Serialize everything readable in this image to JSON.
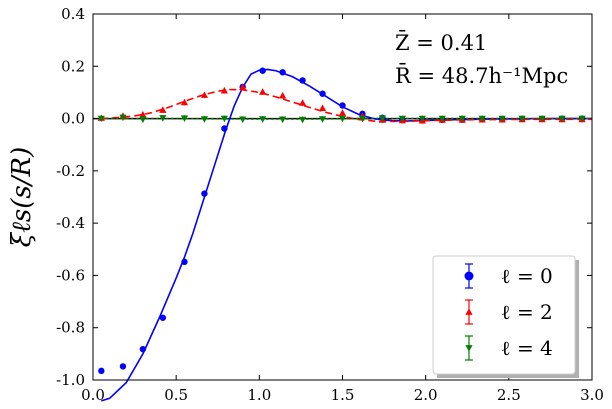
{
  "chart_data": {
    "type": "scatter",
    "ylabel": "ξℓs(s/R)",
    "xlim": [
      0.0,
      3.0
    ],
    "ylim": [
      -1.0,
      0.4
    ],
    "xticks": [
      "0.0",
      "0.5",
      "1.0",
      "1.5",
      "2.0",
      "2.5",
      "3.0"
    ],
    "yticks": [
      "0.4",
      "0.2",
      "0.0",
      "-0.2",
      "-0.4",
      "-0.6",
      "-0.8",
      "-1.0"
    ],
    "annotations": [
      "Z̄ = 0.41",
      "R̄ = 48.7h⁻¹Mpc"
    ],
    "legend_position": "lower-right",
    "series": [
      {
        "name": "ℓ = 0",
        "color": "#0000ff",
        "marker": "circle",
        "points": [
          [
            0.05,
            -0.965
          ],
          [
            0.18,
            -0.948
          ],
          [
            0.3,
            -0.882
          ],
          [
            0.42,
            -0.762
          ],
          [
            0.55,
            -0.548
          ],
          [
            0.67,
            -0.287
          ],
          [
            0.79,
            -0.038
          ],
          [
            0.9,
            0.121
          ],
          [
            1.02,
            0.183
          ],
          [
            1.14,
            0.177
          ],
          [
            1.26,
            0.146
          ],
          [
            1.38,
            0.095
          ],
          [
            1.5,
            0.05
          ],
          [
            1.62,
            0.018
          ],
          [
            1.74,
            0.003
          ],
          [
            1.86,
            -0.004
          ],
          [
            1.98,
            -0.006
          ],
          [
            2.1,
            -0.005
          ],
          [
            2.22,
            -0.004
          ],
          [
            2.34,
            -0.003
          ],
          [
            2.46,
            -0.002
          ],
          [
            2.58,
            -0.001
          ],
          [
            2.7,
            -0.001
          ],
          [
            2.82,
            0.0
          ],
          [
            2.94,
            0.0
          ]
        ],
        "fit": [
          [
            0.05,
            -1.08
          ],
          [
            0.1,
            -1.07
          ],
          [
            0.2,
            -1.01
          ],
          [
            0.3,
            -0.9
          ],
          [
            0.4,
            -0.76
          ],
          [
            0.5,
            -0.61
          ],
          [
            0.55,
            -0.53
          ],
          [
            0.6,
            -0.44
          ],
          [
            0.7,
            -0.24
          ],
          [
            0.8,
            -0.04
          ],
          [
            0.85,
            0.05
          ],
          [
            0.9,
            0.12
          ],
          [
            0.95,
            0.17
          ],
          [
            1.0,
            0.185
          ],
          [
            1.05,
            0.188
          ],
          [
            1.1,
            0.183
          ],
          [
            1.2,
            0.16
          ],
          [
            1.3,
            0.125
          ],
          [
            1.4,
            0.085
          ],
          [
            1.5,
            0.045
          ],
          [
            1.6,
            0.015
          ],
          [
            1.7,
            -0.002
          ],
          [
            1.8,
            -0.008
          ],
          [
            1.9,
            -0.009
          ],
          [
            2.0,
            -0.007
          ],
          [
            2.2,
            -0.004
          ],
          [
            2.4,
            -0.002
          ],
          [
            2.6,
            -0.001
          ],
          [
            2.8,
            0.0
          ],
          [
            3.0,
            0.0
          ]
        ]
      },
      {
        "name": "ℓ = 2",
        "color": "#ff0000",
        "marker": "triangle-up",
        "points": [
          [
            0.05,
            0.002
          ],
          [
            0.18,
            0.01
          ],
          [
            0.3,
            0.015
          ],
          [
            0.42,
            0.033
          ],
          [
            0.55,
            0.062
          ],
          [
            0.67,
            0.09
          ],
          [
            0.79,
            0.107
          ],
          [
            0.9,
            0.12
          ],
          [
            1.02,
            0.102
          ],
          [
            1.14,
            0.088
          ],
          [
            1.26,
            0.06
          ],
          [
            1.38,
            0.04
          ],
          [
            1.5,
            0.022
          ],
          [
            1.62,
            0.01
          ],
          [
            1.74,
            -0.005
          ],
          [
            1.86,
            -0.007
          ],
          [
            1.98,
            -0.008
          ],
          [
            2.1,
            -0.005
          ],
          [
            2.22,
            -0.005
          ],
          [
            2.34,
            -0.004
          ],
          [
            2.46,
            -0.004
          ],
          [
            2.58,
            -0.003
          ],
          [
            2.7,
            -0.003
          ],
          [
            2.82,
            -0.003
          ],
          [
            2.94,
            -0.003
          ]
        ],
        "fit": [
          [
            0.05,
            0.0
          ],
          [
            0.15,
            0.004
          ],
          [
            0.25,
            0.01
          ],
          [
            0.35,
            0.022
          ],
          [
            0.45,
            0.042
          ],
          [
            0.55,
            0.066
          ],
          [
            0.65,
            0.088
          ],
          [
            0.75,
            0.105
          ],
          [
            0.82,
            0.111
          ],
          [
            0.9,
            0.11
          ],
          [
            1.0,
            0.1
          ],
          [
            1.1,
            0.083
          ],
          [
            1.2,
            0.063
          ],
          [
            1.3,
            0.043
          ],
          [
            1.4,
            0.024
          ],
          [
            1.5,
            0.008
          ],
          [
            1.6,
            -0.004
          ],
          [
            1.7,
            -0.01
          ],
          [
            1.8,
            -0.011
          ],
          [
            1.9,
            -0.01
          ],
          [
            2.0,
            -0.008
          ],
          [
            2.2,
            -0.005
          ],
          [
            2.4,
            -0.004
          ],
          [
            2.6,
            -0.003
          ],
          [
            2.8,
            -0.003
          ],
          [
            3.0,
            -0.003
          ]
        ]
      },
      {
        "name": "ℓ = 4",
        "color": "#008000",
        "marker": "triangle-down",
        "points": [
          [
            0.05,
            0.0
          ],
          [
            0.18,
            0.004
          ],
          [
            0.3,
            -0.003
          ],
          [
            0.42,
            0.002
          ],
          [
            0.55,
            0.001
          ],
          [
            0.67,
            -0.002
          ],
          [
            0.79,
            0.0
          ],
          [
            0.9,
            -0.003
          ],
          [
            1.02,
            -0.002
          ],
          [
            1.14,
            -0.003
          ],
          [
            1.26,
            -0.004
          ],
          [
            1.38,
            -0.002
          ],
          [
            1.5,
            0.0
          ],
          [
            1.62,
            0.0
          ],
          [
            1.74,
            0.001
          ],
          [
            1.86,
            0.0
          ],
          [
            1.98,
            0.0
          ],
          [
            2.1,
            0.0
          ],
          [
            2.22,
            0.0
          ],
          [
            2.34,
            0.0
          ],
          [
            2.46,
            0.0
          ],
          [
            2.58,
            0.0
          ],
          [
            2.7,
            0.0
          ],
          [
            2.82,
            0.0
          ],
          [
            2.94,
            0.0
          ]
        ],
        "fit": [
          [
            0.05,
            0.0
          ],
          [
            0.5,
            0.0
          ],
          [
            1.0,
            -0.002
          ],
          [
            1.3,
            -0.002
          ],
          [
            1.6,
            0.0
          ],
          [
            2.0,
            0.0
          ],
          [
            3.0,
            0.0
          ]
        ]
      }
    ]
  }
}
